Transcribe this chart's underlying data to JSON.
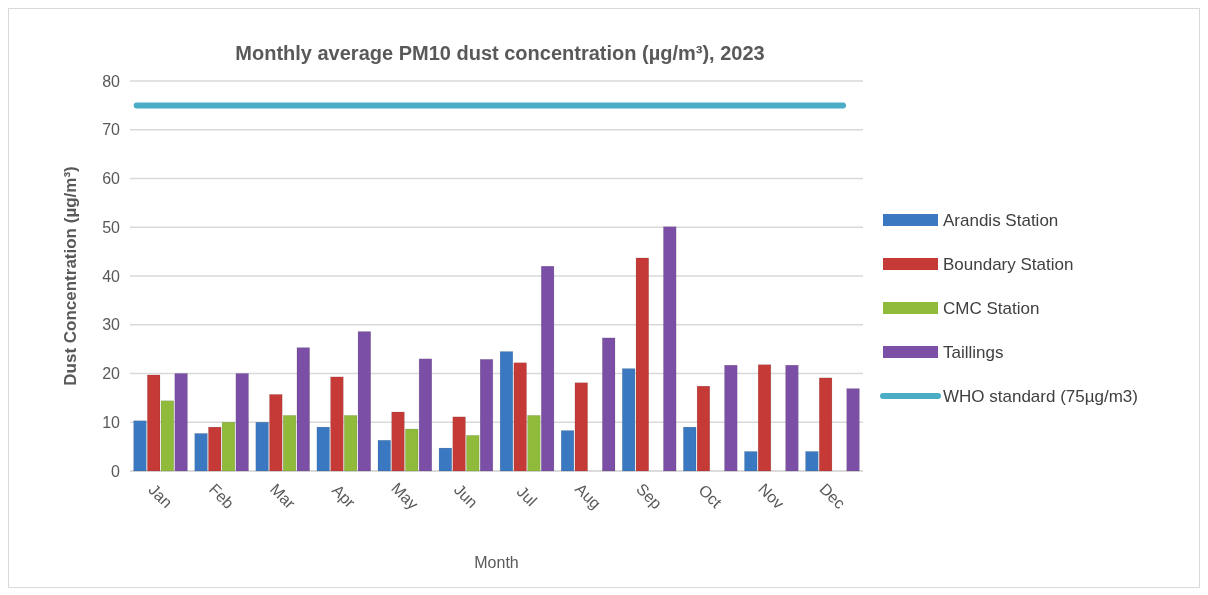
{
  "chart_data": {
    "type": "bar",
    "title": "Monthly average PM10 dust concentration (µg/m³), 2023",
    "xlabel": "Month",
    "ylabel": "Dust Concentration (µg/m³)",
    "categories": [
      "Jan",
      "Feb",
      "Mar",
      "Apr",
      "May",
      "Jun",
      "Jul",
      "Aug",
      "Sep",
      "Oct",
      "Nov",
      "Dec"
    ],
    "series": [
      {
        "name": "Arandis Station",
        "color": "#3a78c2",
        "values": [
          10.3,
          7.7,
          10,
          9,
          6.3,
          4.7,
          24.5,
          8.3,
          21,
          9,
          4,
          4
        ]
      },
      {
        "name": "Boundary Station",
        "color": "#c53a37",
        "values": [
          19.7,
          9,
          15.7,
          19.3,
          12.1,
          11.1,
          22.2,
          18.1,
          43.7,
          17.4,
          21.8,
          19.1
        ]
      },
      {
        "name": "CMC Station",
        "color": "#8fba3a",
        "values": [
          14.4,
          10,
          11.4,
          11.4,
          8.6,
          7.3,
          11.4,
          null,
          null,
          null,
          null,
          null
        ]
      },
      {
        "name": "Taillings",
        "color": "#7b4fa6",
        "values": [
          20,
          20,
          25.3,
          28.6,
          23,
          22.9,
          42,
          27.3,
          50.1,
          21.7,
          21.7,
          16.9
        ]
      }
    ],
    "ref_lines": [
      {
        "axis": "y",
        "value": 75,
        "label": "WHO standard (75µg/m3)",
        "color": "#4bacc6"
      }
    ],
    "ylim": [
      0,
      80
    ],
    "yticks": [
      0,
      10,
      20,
      30,
      40,
      50,
      60,
      70,
      80
    ],
    "grid": "y",
    "legend": "right"
  }
}
